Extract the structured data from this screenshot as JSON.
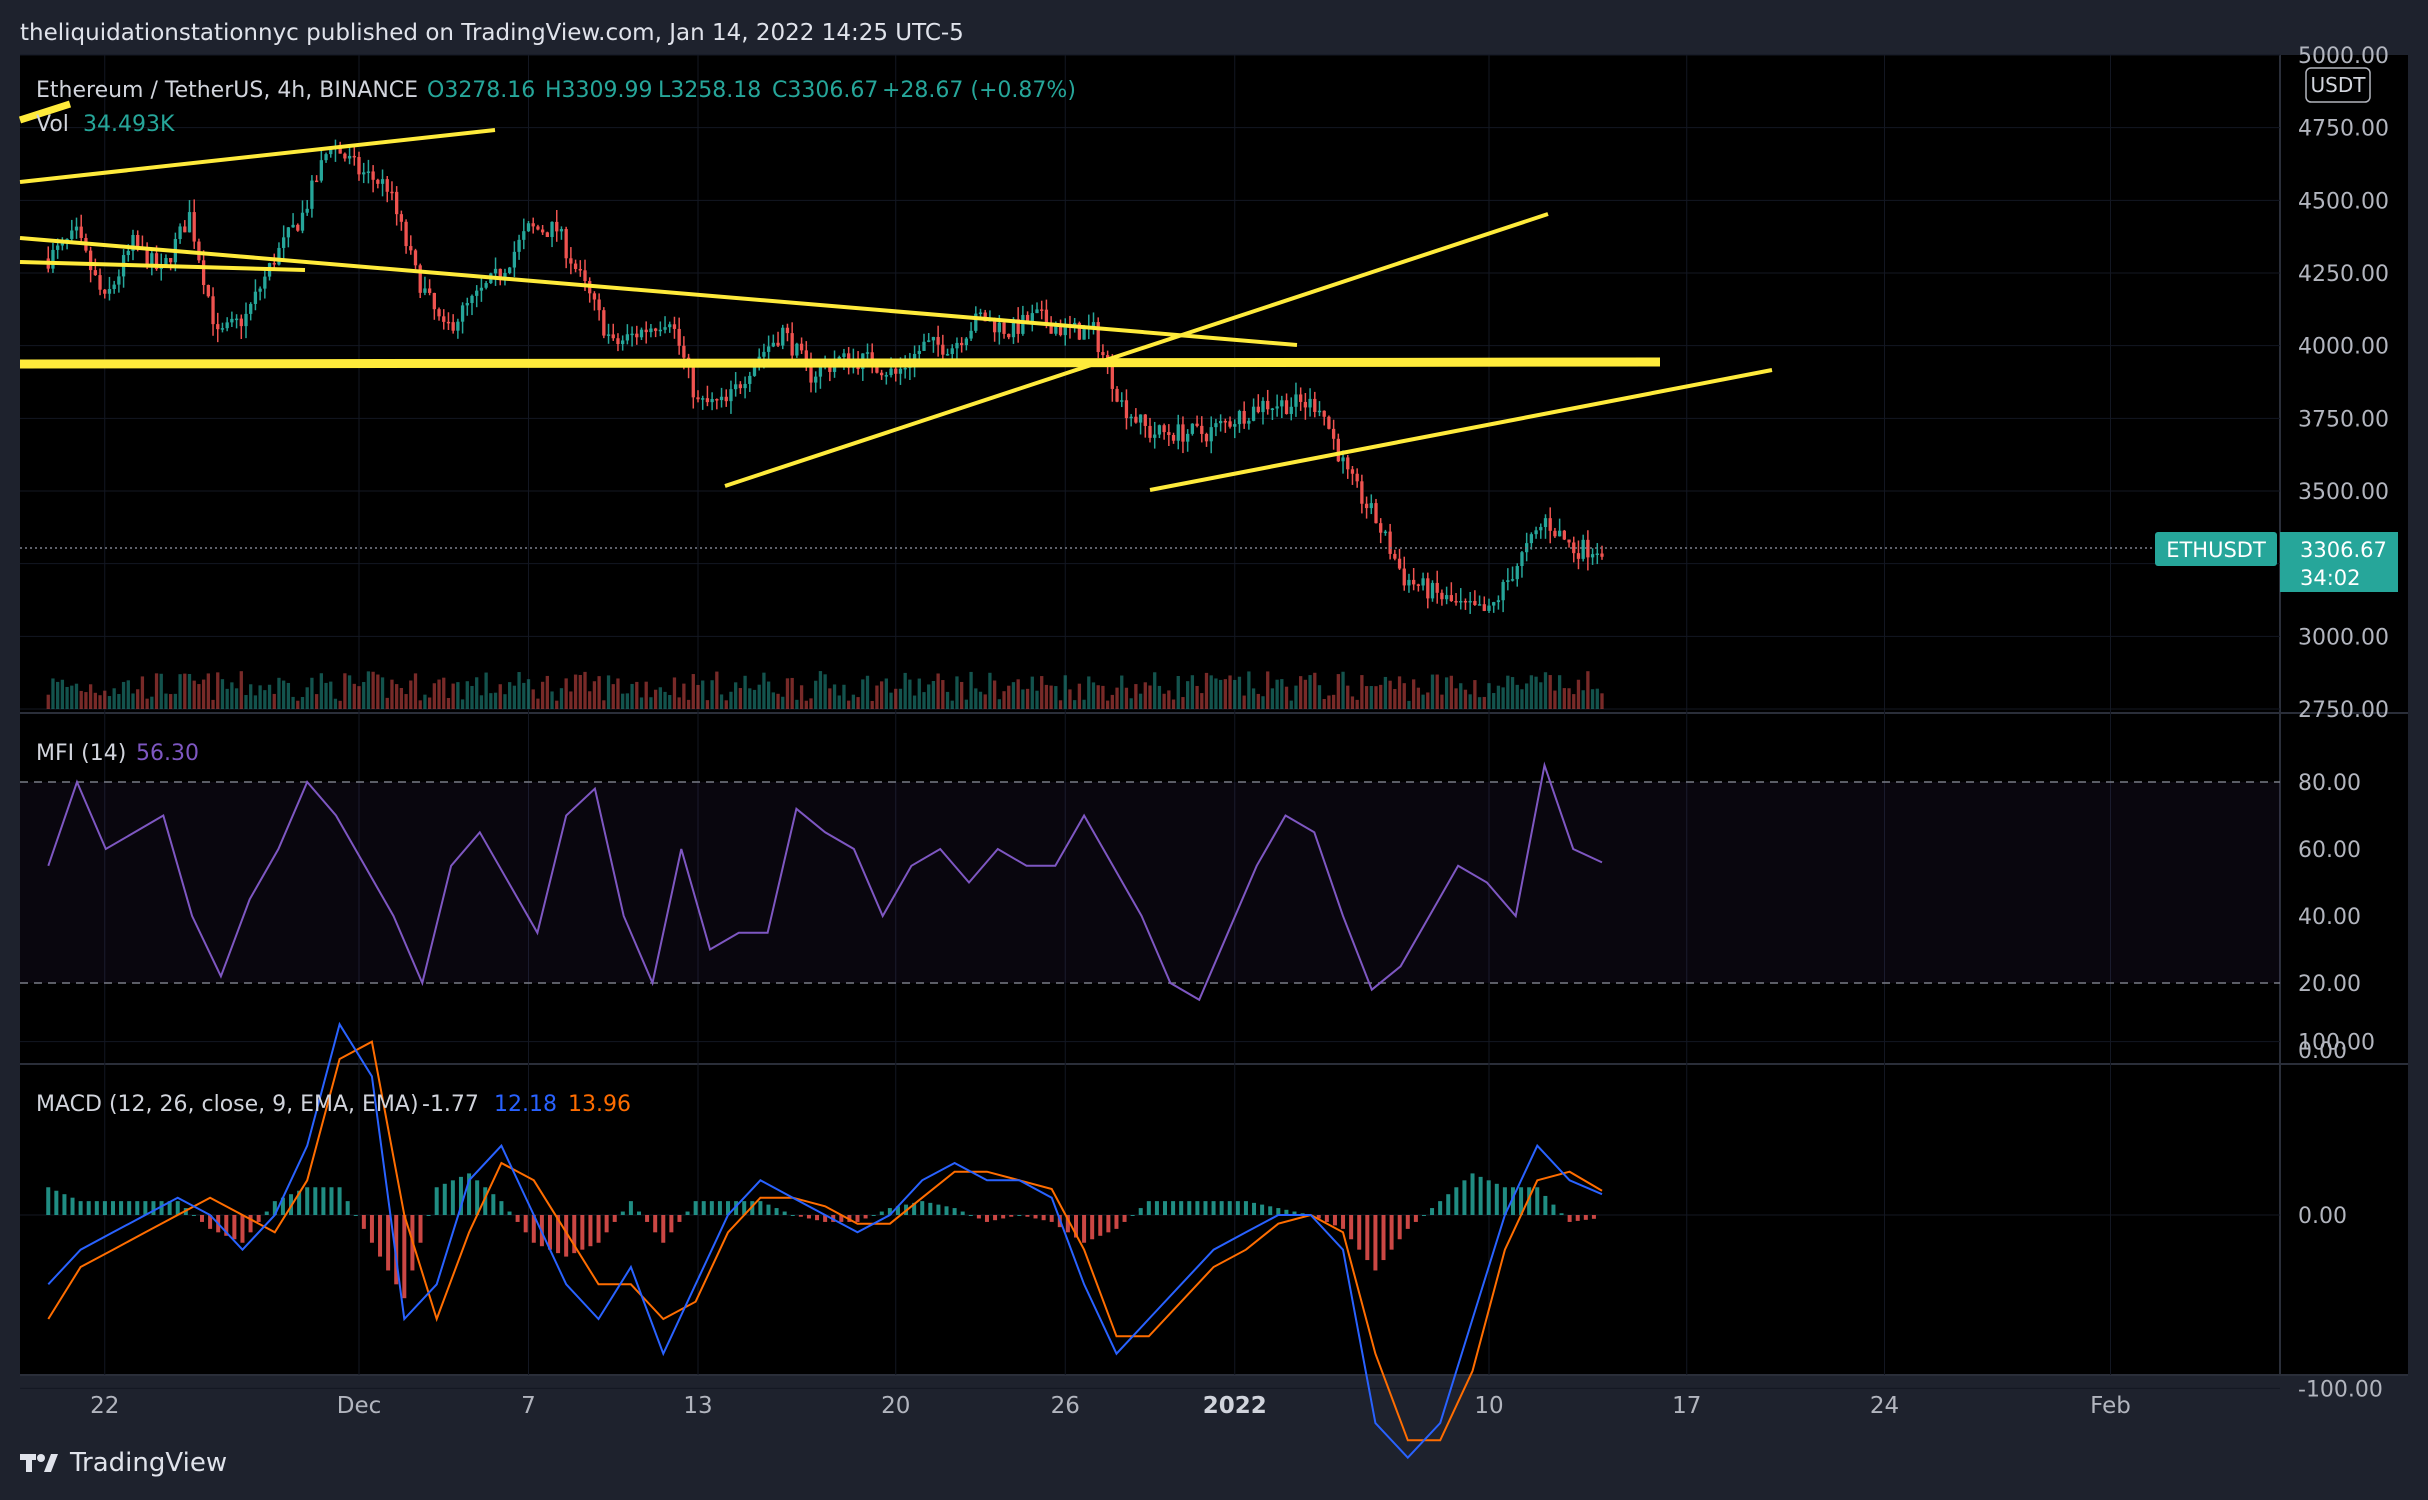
{
  "header": {
    "publisher": "theliquidationstationnyc published on TradingView.com, Jan 14, 2022 14:25 UTC-5"
  },
  "footer": {
    "brand": "TradingView"
  },
  "colors": {
    "background": "#000000",
    "up": "#26a69a",
    "down": "#ef5350",
    "trendline": "#ffeb3b",
    "mfi": "#7e57c2",
    "macd": "#2962ff",
    "signal": "#ff6d00"
  },
  "chart_data": [
    {
      "type": "candlestick",
      "title": "Ethereum / TetherUS, 4h, BINANCE",
      "ohlc_labels": {
        "o": "O3278.16",
        "h": "H3309.99",
        "l": "L3258.18",
        "c": "C3306.67",
        "change": "+28.67 (+0.87%)"
      },
      "volume_label": "Vol",
      "volume_value": "34.493K",
      "currency": "USDT",
      "symbol": "ETHUSDT",
      "last_price": "3306.67",
      "countdown": "34:02",
      "ylim": [
        2750,
        5000
      ],
      "y_ticks": [
        "5000.00",
        "4750.00",
        "4500.00",
        "4250.00",
        "4000.00",
        "3750.00",
        "3500.00",
        "3250.00",
        "3000.00",
        "2750.00"
      ],
      "x_ticks": [
        "22",
        "Dec",
        "7",
        "13",
        "20",
        "26",
        "2022",
        "10",
        "17",
        "24",
        "Feb"
      ],
      "date_range": [
        "2021-11-20",
        "2022-01-14"
      ],
      "close_path": [
        {
          "date": "2021-11-20",
          "price": 4300
        },
        {
          "date": "2021-11-21",
          "price": 4380
        },
        {
          "date": "2021-11-22",
          "price": 4150
        },
        {
          "date": "2021-11-23",
          "price": 4350
        },
        {
          "date": "2021-11-24",
          "price": 4250
        },
        {
          "date": "2021-11-25",
          "price": 4450
        },
        {
          "date": "2021-11-26",
          "price": 4030
        },
        {
          "date": "2021-11-27",
          "price": 4100
        },
        {
          "date": "2021-11-28",
          "price": 4300
        },
        {
          "date": "2021-11-29",
          "price": 4450
        },
        {
          "date": "2021-11-30",
          "price": 4700
        },
        {
          "date": "2021-12-01",
          "price": 4600
        },
        {
          "date": "2021-12-02",
          "price": 4550
        },
        {
          "date": "2021-12-03",
          "price": 4250
        },
        {
          "date": "2021-12-04",
          "price": 4050
        },
        {
          "date": "2021-12-05",
          "price": 4150
        },
        {
          "date": "2021-12-06",
          "price": 4250
        },
        {
          "date": "2021-12-07",
          "price": 4400
        },
        {
          "date": "2021-12-08",
          "price": 4400
        },
        {
          "date": "2021-12-09",
          "price": 4200
        },
        {
          "date": "2021-12-10",
          "price": 4000
        },
        {
          "date": "2021-12-11",
          "price": 4050
        },
        {
          "date": "2021-12-12",
          "price": 4100
        },
        {
          "date": "2021-12-13",
          "price": 3800
        },
        {
          "date": "2021-12-14",
          "price": 3800
        },
        {
          "date": "2021-12-15",
          "price": 3950
        },
        {
          "date": "2021-12-16",
          "price": 4050
        },
        {
          "date": "2021-12-17",
          "price": 3900
        },
        {
          "date": "2021-12-18",
          "price": 3950
        },
        {
          "date": "2021-12-19",
          "price": 3950
        },
        {
          "date": "2021-12-20",
          "price": 3900
        },
        {
          "date": "2021-12-21",
          "price": 4000
        },
        {
          "date": "2021-12-22",
          "price": 4000
        },
        {
          "date": "2021-12-23",
          "price": 4100
        },
        {
          "date": "2021-12-24",
          "price": 4050
        },
        {
          "date": "2021-12-25",
          "price": 4100
        },
        {
          "date": "2021-12-26",
          "price": 4050
        },
        {
          "date": "2021-12-27",
          "price": 4050
        },
        {
          "date": "2021-12-28",
          "price": 3800
        },
        {
          "date": "2021-12-29",
          "price": 3700
        },
        {
          "date": "2021-12-30",
          "price": 3700
        },
        {
          "date": "2021-12-31",
          "price": 3700
        },
        {
          "date": "2022-01-01",
          "price": 3750
        },
        {
          "date": "2022-01-02",
          "price": 3800
        },
        {
          "date": "2022-01-03",
          "price": 3800
        },
        {
          "date": "2022-01-04",
          "price": 3800
        },
        {
          "date": "2022-01-05",
          "price": 3550
        },
        {
          "date": "2022-01-06",
          "price": 3400
        },
        {
          "date": "2022-01-07",
          "price": 3200
        },
        {
          "date": "2022-01-08",
          "price": 3150
        },
        {
          "date": "2022-01-09",
          "price": 3100
        },
        {
          "date": "2022-01-10",
          "price": 3080
        },
        {
          "date": "2022-01-11",
          "price": 3250
        },
        {
          "date": "2022-01-12",
          "price": 3400
        },
        {
          "date": "2022-01-13",
          "price": 3300
        },
        {
          "date": "2022-01-14",
          "price": 3306.67
        }
      ]
    },
    {
      "type": "line",
      "title": "MFI (14)",
      "value": "56.30",
      "ylim": [
        0,
        100
      ],
      "y_ticks": [
        "80.00",
        "60.00",
        "40.00",
        "20.00",
        "0.00"
      ],
      "bands": [
        20,
        80
      ],
      "series": [
        {
          "values": [
            55,
            80,
            60,
            65,
            70,
            40,
            22,
            45,
            60,
            80,
            70,
            55,
            40,
            20,
            55,
            65,
            50,
            35,
            70,
            78,
            40,
            20,
            60,
            30,
            35,
            35,
            72,
            65,
            60,
            40,
            55,
            60,
            50,
            60,
            55,
            55,
            70,
            55,
            40,
            20,
            15,
            35,
            55,
            70,
            65,
            40,
            18,
            25,
            40,
            55,
            50,
            40,
            85,
            60,
            56
          ]
        }
      ]
    },
    {
      "type": "line",
      "title": "MACD (12, 26, close, 9, EMA, EMA)",
      "values_labels": [
        "-1.77",
        "12.18",
        "13.96"
      ],
      "ylim": [
        -150,
        150
      ],
      "y_ticks": [
        "100.00",
        "0.00",
        "-100.00"
      ],
      "series": [
        {
          "name": "MACD",
          "values": [
            -40,
            -20,
            -10,
            0,
            10,
            0,
            -20,
            0,
            40,
            110,
            80,
            -60,
            -40,
            20,
            40,
            0,
            -40,
            -60,
            -30,
            -80,
            -40,
            0,
            20,
            10,
            0,
            -10,
            0,
            20,
            30,
            20,
            20,
            10,
            -40,
            -80,
            -60,
            -40,
            -20,
            -10,
            0,
            0,
            -20,
            -120,
            -140,
            -120,
            -60,
            0,
            40,
            20,
            12
          ]
        },
        {
          "name": "Signal",
          "values": [
            -60,
            -30,
            -20,
            -10,
            0,
            10,
            0,
            -10,
            20,
            90,
            100,
            0,
            -60,
            -10,
            30,
            20,
            -10,
            -40,
            -40,
            -60,
            -50,
            -10,
            10,
            10,
            5,
            -5,
            -5,
            10,
            25,
            25,
            20,
            15,
            -20,
            -70,
            -70,
            -50,
            -30,
            -20,
            -5,
            0,
            -10,
            -80,
            -130,
            -130,
            -90,
            -20,
            20,
            25,
            14
          ]
        }
      ]
    }
  ]
}
